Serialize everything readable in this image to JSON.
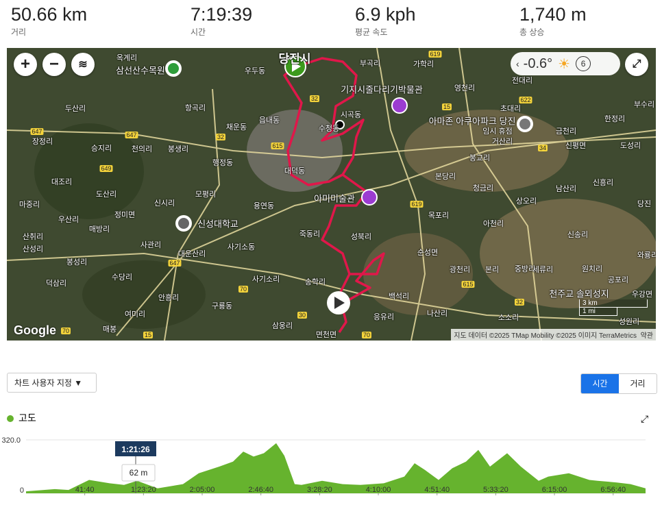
{
  "stats": [
    {
      "value": "50.66 km",
      "label": "거리"
    },
    {
      "value": "7:19:39",
      "label": "시간"
    },
    {
      "value": "6.9 kph",
      "label": "평균 속도"
    },
    {
      "value": "1,740 m",
      "label": "총 상승"
    }
  ],
  "map": {
    "title": "당진시",
    "labels": [
      "옥계리",
      "삼선산수목원",
      "우두동",
      "부곡리",
      "가학리",
      "기지시줄다리기박물관",
      "영천리",
      "전대리",
      "두산리",
      "항곡리",
      "읍내동",
      "시곡동",
      "수청동",
      "초대리",
      "아마존 아쿠아파크 당진",
      "임시 휴점",
      "한정리",
      "금천리",
      "부수리",
      "장정리",
      "채운동",
      "거산리",
      "승지리",
      "천의리",
      "봉생리",
      "신평면",
      "도성리",
      "행정동",
      "대덕동",
      "봉교리",
      "본당리",
      "대조리",
      "도산리",
      "모평리",
      "청금리",
      "남산리",
      "신흥리",
      "아미미술관",
      "용연동",
      "신시리",
      "마중리",
      "상오리",
      "당진",
      "정미면",
      "우산리",
      "목포리",
      "신성대학교",
      "매방리",
      "아천리",
      "죽동리",
      "성북리",
      "산취리",
      "사관리",
      "대운산리",
      "사기소동",
      "신송리",
      "산성리",
      "순성면",
      "봉성리",
      "와룡리",
      "광천리",
      "본리",
      "중방리",
      "세류리",
      "원치리",
      "수당리",
      "사기소리",
      "송학리",
      "백석리",
      "공포리",
      "덕삼리",
      "안흥리",
      "천주교 솔뫼성지",
      "구룡동",
      "우강면",
      "여미리",
      "나산리",
      "소소리",
      "삼웅리",
      "응유리",
      "성원리",
      "면천면",
      "매봉"
    ],
    "road_numbers": [
      "619",
      "32",
      "15",
      "622",
      "647",
      "647",
      "649",
      "615",
      "32",
      "34",
      "647",
      "619",
      "615",
      "32",
      "70",
      "30",
      "15",
      "70",
      "70"
    ],
    "temperature": "-0.6°",
    "wind": "6",
    "scale_km": "3 km",
    "scale_mi": "1 mi",
    "brand": "Google",
    "attribution": "지도 데이터 ©2025 TMap Mobility ©2025 이미지 TerraMetrics",
    "terms": "약관"
  },
  "controls": {
    "customize": "차트 사용자 지정 ▼",
    "toggle": [
      "시간",
      "거리"
    ]
  },
  "chart_data": {
    "type": "area",
    "title": "고도",
    "color": "#66b32e",
    "x": [
      0,
      1226,
      1809,
      2685,
      3560,
      4173,
      4727,
      5603,
      6682,
      7353,
      8229,
      8813,
      9250,
      9688,
      10126,
      10651,
      11001,
      11439,
      11730,
      12606,
      13481,
      14240,
      15232,
      16107,
      16545,
      16983,
      17566,
      18150,
      18734,
      19259,
      19755,
      20484,
      21068,
      21827,
      22235,
      23110,
      23986,
      24336,
      25153,
      25737,
      26379
    ],
    "values": [
      12,
      25,
      20,
      80,
      60,
      50,
      75,
      30,
      55,
      120,
      160,
      190,
      250,
      220,
      240,
      300,
      225,
      55,
      50,
      75,
      55,
      50,
      60,
      100,
      180,
      140,
      80,
      150,
      190,
      260,
      160,
      240,
      160,
      75,
      100,
      120,
      80,
      75,
      65,
      55,
      30
    ],
    "xlim": [
      0,
      26379
    ],
    "ylim": [
      0,
      320
    ],
    "yticks": [
      {
        "value": 320,
        "label": "320.0"
      },
      0
    ],
    "xticks": [
      {
        "value": 2500,
        "label": "41:40"
      },
      {
        "value": 5000,
        "label": "1:23:20"
      },
      {
        "value": 7500,
        "label": "2:05:00"
      },
      {
        "value": 10000,
        "label": "2:46:40"
      },
      {
        "value": 12500,
        "label": "3:28:20"
      },
      {
        "value": 15000,
        "label": "4:10:00"
      },
      {
        "value": 17500,
        "label": "4:51:40"
      },
      {
        "value": 20000,
        "label": "5:33:20"
      },
      {
        "value": 22500,
        "label": "6:15:00"
      },
      {
        "value": 25000,
        "label": "6:56:40"
      }
    ],
    "cursor_time": "1:21:26",
    "cursor_value": "62 m"
  }
}
